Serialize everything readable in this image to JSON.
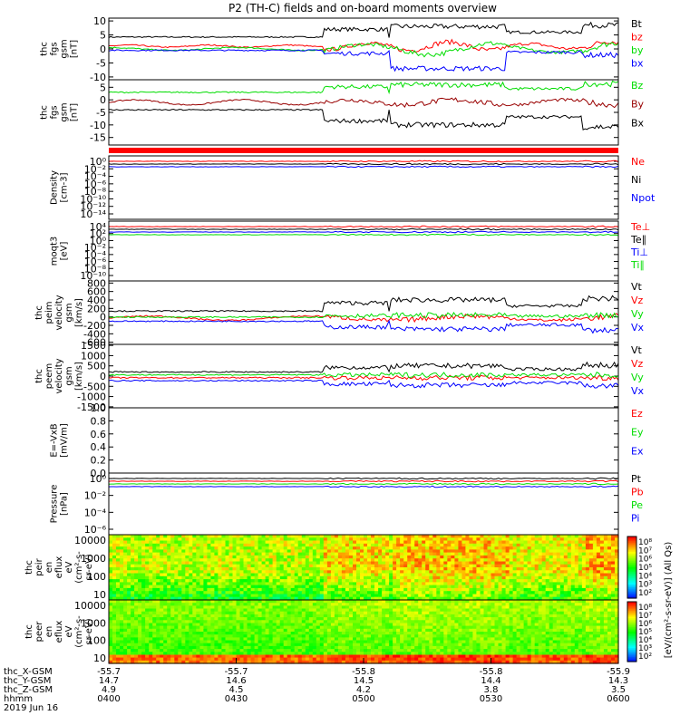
{
  "title": "P2 (TH-C) fields and on-board moments overview",
  "chart_data": [
    {
      "type": "line",
      "ylabel": [
        "thc",
        "fgs",
        "gsm",
        "[nT]"
      ],
      "yticks": [
        10,
        5,
        0,
        -5,
        -10
      ],
      "ylim": [
        -11,
        11
      ],
      "series": [
        {
          "name": "Bt",
          "color": "#000000"
        },
        {
          "name": "bz",
          "color": "#ff0000"
        },
        {
          "name": "by",
          "color": "#00dd00"
        },
        {
          "name": "bx",
          "color": "#0000ff"
        }
      ]
    },
    {
      "type": "line",
      "ylabel": [
        "thc",
        "fgs",
        "gsm",
        "[nT]"
      ],
      "yticks": [
        5,
        0,
        -5,
        -10,
        -15
      ],
      "ylim": [
        -18,
        8
      ],
      "series": [
        {
          "name": "Bz",
          "color": "#00dd00"
        },
        {
          "name": "By",
          "color": "#990000"
        },
        {
          "name": "Bx",
          "color": "#000000"
        }
      ]
    },
    {
      "type": "line",
      "ylabel": [
        "Density",
        "[cm-3]"
      ],
      "yticks": [
        "10⁰",
        "10⁻²",
        "10⁻⁴",
        "10⁻⁶",
        "10⁻⁸",
        "10⁻¹⁰",
        "10⁻¹²",
        "10⁻¹⁴"
      ],
      "scale": "log",
      "series": [
        {
          "name": "Ne",
          "color": "#ff0000"
        },
        {
          "name": "Ni",
          "color": "#000000"
        },
        {
          "name": "Npot",
          "color": "#0000ff"
        }
      ]
    },
    {
      "type": "line",
      "ylabel": [
        "moqt3",
        "[eV]"
      ],
      "yticks": [
        "10⁴",
        "10²",
        "10⁰",
        "10⁻²",
        "10⁻⁴",
        "10⁻⁶",
        "10⁻⁸",
        "10⁻¹⁰"
      ],
      "scale": "log",
      "series": [
        {
          "name": "Te⊥",
          "color": "#ff0000"
        },
        {
          "name": "Te∥",
          "color": "#000000"
        },
        {
          "name": "Ti⊥",
          "color": "#0000ff"
        },
        {
          "name": "Ti∥",
          "color": "#00dd00"
        }
      ]
    },
    {
      "type": "line",
      "ylabel": [
        "thc",
        "peim",
        "velocity",
        "gsm",
        "[km/s]"
      ],
      "yticks": [
        800,
        600,
        400,
        200,
        0,
        -200,
        -400,
        -600
      ],
      "ylim": [
        -650,
        850
      ],
      "series": [
        {
          "name": "Vt",
          "color": "#000000"
        },
        {
          "name": "Vz",
          "color": "#ff0000"
        },
        {
          "name": "Vy",
          "color": "#00dd00"
        },
        {
          "name": "Vx",
          "color": "#0000ff"
        }
      ]
    },
    {
      "type": "line",
      "ylabel": [
        "thc",
        "peem",
        "velocity",
        "gsm",
        "[km/s]"
      ],
      "yticks": [
        1500,
        1000,
        500,
        0,
        -500,
        -1000,
        -1500
      ],
      "ylim": [
        -1550,
        1550
      ],
      "series": [
        {
          "name": "Vt",
          "color": "#000000"
        },
        {
          "name": "Vz",
          "color": "#ff0000"
        },
        {
          "name": "Vy",
          "color": "#00dd00"
        },
        {
          "name": "Vx",
          "color": "#0000ff"
        }
      ]
    },
    {
      "type": "line",
      "ylabel": [
        "E=-VxB",
        "[mV/m]"
      ],
      "yticks": [
        "1.0",
        "0.8",
        "0.6",
        "0.4",
        "0.2",
        "0.0"
      ],
      "ylim": [
        0,
        1
      ],
      "series": [
        {
          "name": "Ez",
          "color": "#ff0000"
        },
        {
          "name": "Ey",
          "color": "#00dd00"
        },
        {
          "name": "Ex",
          "color": "#0000ff"
        }
      ]
    },
    {
      "type": "line",
      "ylabel": [
        "Pressure",
        "[nPa]"
      ],
      "yticks": [
        "10⁰",
        "10⁻²",
        "10⁻⁴",
        "10⁻⁶"
      ],
      "scale": "log",
      "series": [
        {
          "name": "Pt",
          "color": "#000000"
        },
        {
          "name": "Pb",
          "color": "#ff0000"
        },
        {
          "name": "Pe",
          "color": "#00dd00"
        },
        {
          "name": "Pi",
          "color": "#0000ff"
        }
      ]
    },
    {
      "type": "heatmap",
      "ylabel": [
        "thc",
        "peir",
        "en",
        "eflux",
        "eV",
        "(cm²-s-",
        "sr-eV)"
      ],
      "yticks": [
        10000,
        1000,
        100,
        10
      ],
      "scale": "log"
    },
    {
      "type": "heatmap",
      "ylabel": [
        "thc",
        "peer",
        "en",
        "eflux",
        "eV",
        "(cm²-s-",
        "sr-eV)"
      ],
      "yticks": [
        10000,
        1000,
        100,
        10
      ],
      "scale": "log"
    }
  ],
  "colorbar": {
    "label": "[eV/(cm²-s-sr-eV)] (All Qs)",
    "ticks_top": [
      "10⁸",
      "10⁷",
      "10⁶",
      "10⁵",
      "10⁴",
      "10³",
      "10²"
    ],
    "ticks_bottom": [
      "10⁸",
      "10⁷",
      "10⁶",
      "10⁵",
      "10⁴",
      "10³",
      "10²"
    ]
  },
  "x_axis": {
    "row_labels": [
      "thc_X-GSM",
      "thc_Y-GSM",
      "thc_Z-GSM",
      "hhmm",
      "2019 Jun 16"
    ],
    "ticks": [
      {
        "x": "-55.7",
        "y": "14.7",
        "z": "4.9",
        "t": "0400"
      },
      {
        "x": "-55.7",
        "y": "14.6",
        "z": "4.5",
        "t": "0430"
      },
      {
        "x": "-55.8",
        "y": "14.5",
        "z": "4.2",
        "t": "0500"
      },
      {
        "x": "-55.8",
        "y": "14.4",
        "z": "3.8",
        "t": "0530"
      },
      {
        "x": "-55.9",
        "y": "14.3",
        "z": "3.5",
        "t": "0600"
      }
    ]
  }
}
